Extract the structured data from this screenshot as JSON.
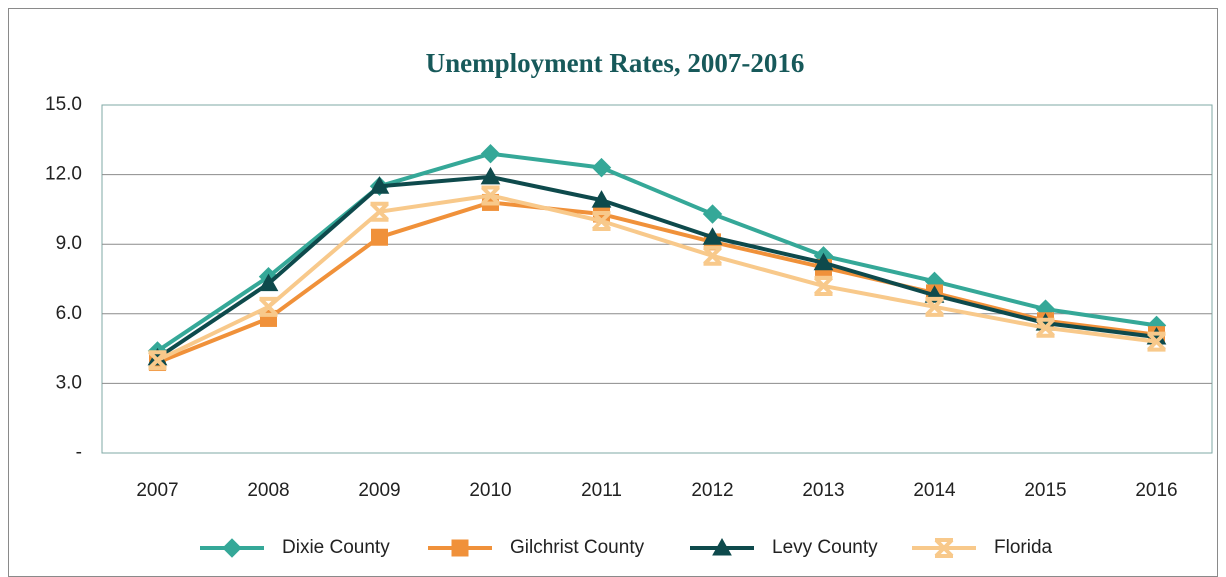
{
  "chart_data": {
    "type": "line",
    "title": "Unemployment Rates, 2007-2016",
    "categories": [
      "2007",
      "2008",
      "2009",
      "2010",
      "2011",
      "2012",
      "2013",
      "2014",
      "2015",
      "2016"
    ],
    "series": [
      {
        "name": "Dixie County",
        "color": "#35a898",
        "marker": "diamond",
        "values": [
          4.4,
          7.6,
          11.5,
          12.9,
          12.3,
          10.3,
          8.5,
          7.4,
          6.2,
          5.5
        ]
      },
      {
        "name": "Gilchrist County",
        "color": "#f0913a",
        "marker": "square",
        "values": [
          3.9,
          5.8,
          9.3,
          10.8,
          10.3,
          9.1,
          8.0,
          6.9,
          5.7,
          5.1
        ]
      },
      {
        "name": "Levy County",
        "color": "#0e4a4c",
        "marker": "triangle",
        "values": [
          4.1,
          7.3,
          11.5,
          11.9,
          10.9,
          9.3,
          8.2,
          6.8,
          5.6,
          5.0
        ]
      },
      {
        "name": "Florida",
        "color": "#f8c98b",
        "marker": "star",
        "values": [
          4.0,
          6.3,
          10.4,
          11.1,
          10.0,
          8.5,
          7.2,
          6.3,
          5.4,
          4.8
        ]
      }
    ],
    "ylim": [
      0,
      15
    ],
    "yticks": [
      {
        "value": 0,
        "label": "-"
      },
      {
        "value": 3,
        "label": "3.0"
      },
      {
        "value": 6,
        "label": "6.0"
      },
      {
        "value": 9,
        "label": "9.0"
      },
      {
        "value": 12,
        "label": "12.0"
      },
      {
        "value": 15,
        "label": "15.0"
      }
    ],
    "grid": true,
    "legend": "bottom"
  }
}
